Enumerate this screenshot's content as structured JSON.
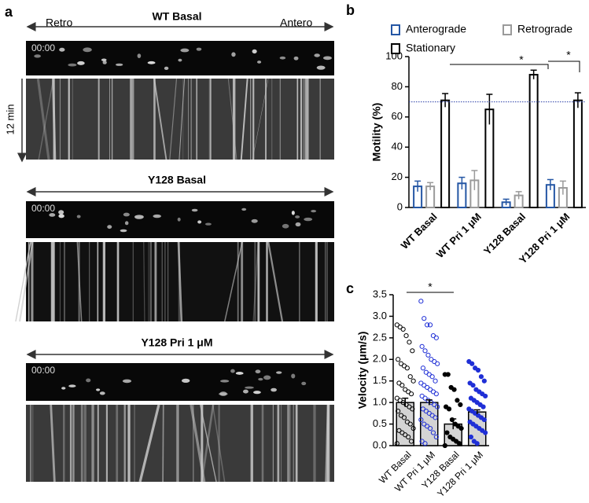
{
  "panel_labels": [
    "a",
    "b",
    "c"
  ],
  "panel_a": {
    "direction_labels": [
      "Retro",
      "Antero"
    ],
    "time_label": "12 min",
    "conditions": [
      {
        "title": "WT Basal",
        "timestamp": "00:00"
      },
      {
        "title": "Y128 Basal",
        "timestamp": "00:00"
      },
      {
        "title": "Y128 Pri 1 μM",
        "timestamp": "00:00"
      }
    ]
  },
  "chart_data": [
    {
      "type": "bar",
      "ylabel": "Motility (%)",
      "categories": [
        "WT Basal",
        "WT Pri 1 μM",
        "Y128 Basal",
        "Y128 Pri 1 μM"
      ],
      "series": [
        {
          "name": "Anterograde",
          "color": "#2456a4",
          "values": [
            14,
            16,
            3.5,
            15
          ],
          "errors": [
            3.5,
            4,
            2,
            3.5
          ]
        },
        {
          "name": "Retrograde",
          "color": "#9a9a9a",
          "values": [
            14,
            18,
            8,
            13
          ],
          "errors": [
            2.5,
            6.5,
            2.5,
            4.5
          ]
        },
        {
          "name": "Stationary",
          "color": "#000000",
          "values": [
            71,
            65,
            88,
            71
          ],
          "errors": [
            4.5,
            10,
            3,
            5
          ]
        }
      ],
      "ylim": [
        0,
        100
      ],
      "yticks": [
        0,
        20,
        40,
        60,
        80,
        100
      ],
      "reference_line": 70,
      "reference_color": "#2a3fa8",
      "annotations": [
        "*",
        "*"
      ]
    },
    {
      "type": "bar",
      "ylabel": "Velocity (μm/s)",
      "categories": [
        "WT Basal",
        "WT Pri 1 μM",
        "Y128 Basal",
        "Y128 Pri 1 μM"
      ],
      "values": [
        1.0,
        1.0,
        0.5,
        0.78
      ],
      "errors": [
        0.1,
        0.06,
        0.12,
        0.05
      ],
      "color": "#d4d4d4",
      "point_colors": [
        "#000000",
        "#1f2fd6",
        "#000000",
        "#1f2fd6"
      ],
      "point_filled": [
        false,
        false,
        true,
        true
      ],
      "points": [
        [
          2.8,
          2.75,
          2.7,
          2.55,
          2.4,
          2.2,
          2.0,
          1.9,
          1.85,
          1.8,
          1.6,
          1.5,
          1.45,
          1.4,
          1.3,
          1.25,
          1.2,
          1.1,
          1.05,
          1.0,
          0.95,
          0.9,
          0.85,
          0.8,
          0.7,
          0.65,
          0.55,
          0.5,
          0.4,
          0.35,
          0.3,
          0.25,
          0.2,
          0.1,
          0.05
        ],
        [
          3.35,
          2.95,
          2.8,
          2.8,
          2.55,
          2.5,
          2.3,
          2.2,
          2.1,
          2.0,
          1.95,
          1.9,
          1.8,
          1.7,
          1.65,
          1.6,
          1.5,
          1.45,
          1.4,
          1.35,
          1.3,
          1.25,
          1.2,
          1.15,
          1.1,
          1.05,
          1.0,
          0.95,
          0.9,
          0.85,
          0.8,
          0.75,
          0.7,
          0.65,
          0.6,
          0.5,
          0.45,
          0.4,
          0.3,
          0.2,
          0.1,
          0.05
        ],
        [
          1.65,
          1.65,
          1.35,
          1.3,
          1.05,
          0.95,
          0.9,
          0.85,
          0.6,
          0.5,
          0.45,
          0.4,
          0.3,
          0.2,
          0.15,
          0.1,
          0.05,
          0.0
        ],
        [
          1.95,
          1.9,
          1.8,
          1.75,
          1.6,
          1.5,
          1.45,
          1.4,
          1.3,
          1.25,
          1.2,
          1.15,
          1.1,
          1.05,
          1.0,
          0.95,
          0.9,
          0.85,
          0.8,
          0.75,
          0.7,
          0.65,
          0.6,
          0.55,
          0.5,
          0.45,
          0.4,
          0.35,
          0.3,
          0.2,
          0.1,
          0.05
        ]
      ],
      "ylim": [
        0,
        3.5
      ],
      "yticks": [
        {
          "value": 0,
          "label": "0.0"
        },
        0.5,
        {
          "value": 1,
          "label": "1.0"
        },
        1.5,
        {
          "value": 2,
          "label": "2.0"
        },
        2.5,
        {
          "value": 3,
          "label": "3.0"
        },
        3.5
      ],
      "annotations": [
        "*"
      ]
    }
  ]
}
